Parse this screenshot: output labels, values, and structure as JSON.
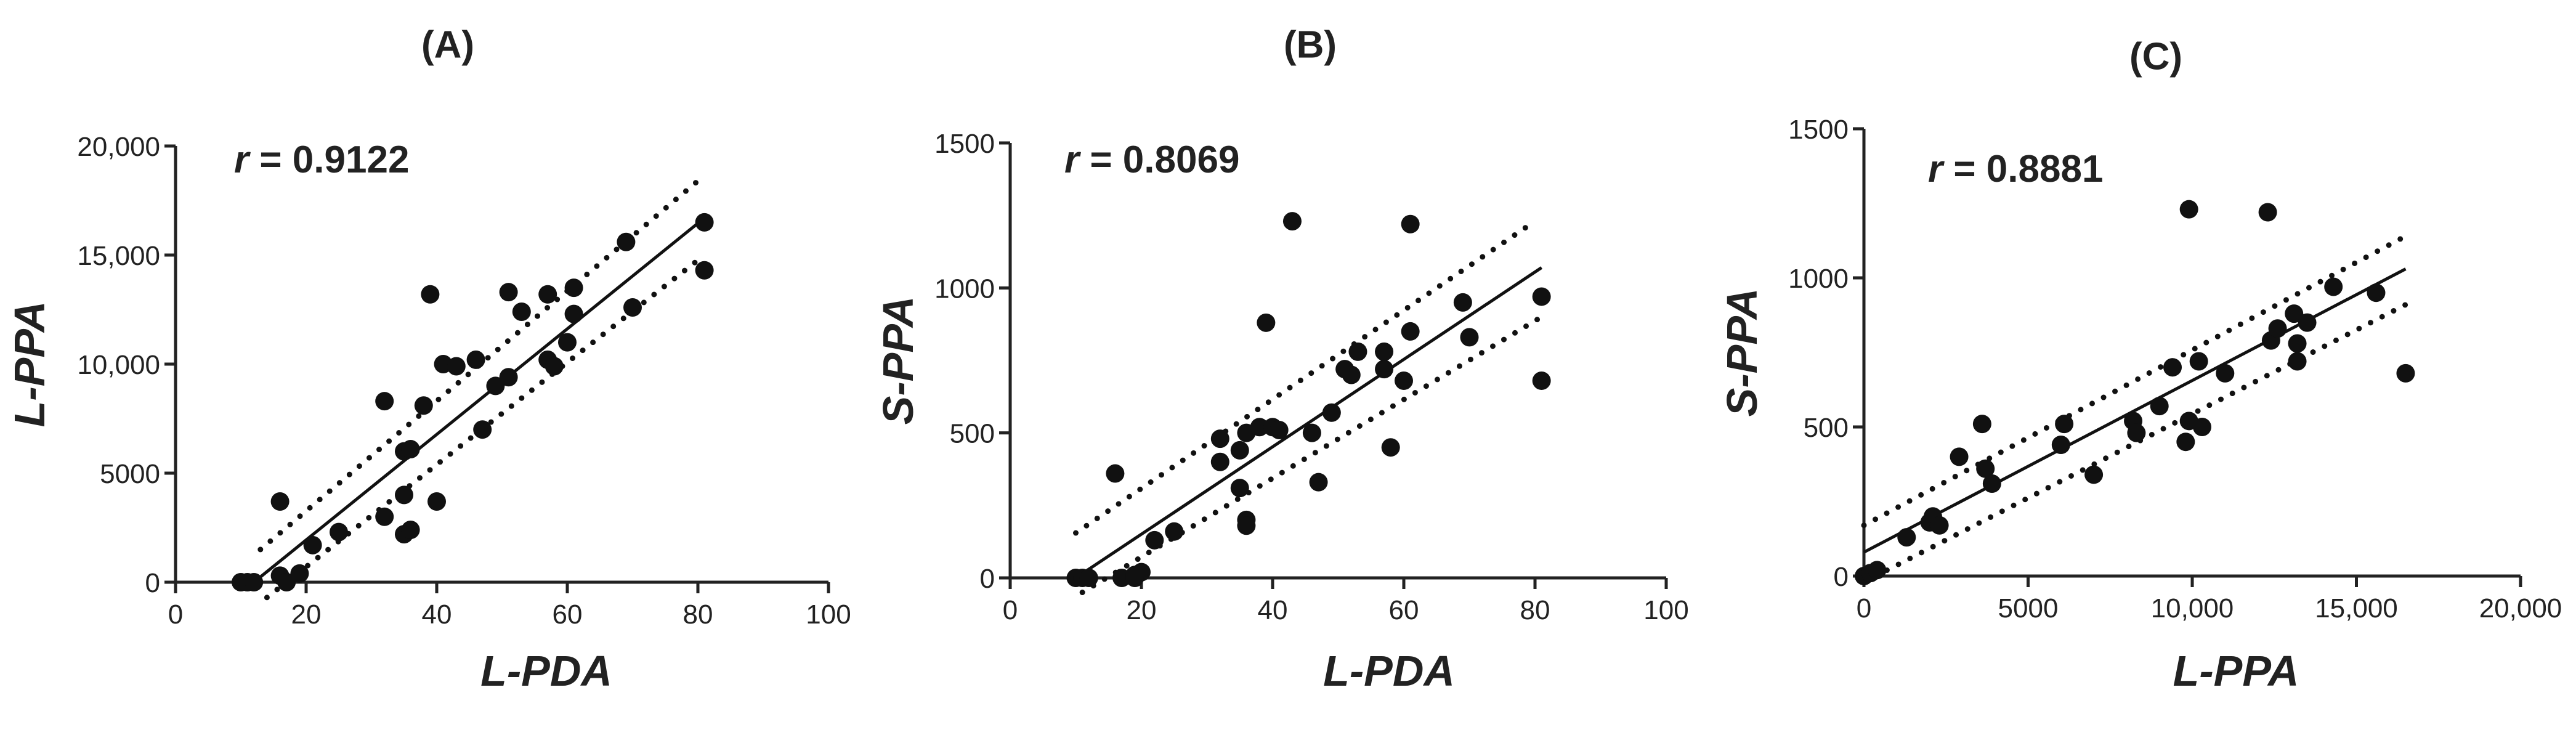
{
  "chart_data": [
    {
      "type": "scatter",
      "panel": "(A)",
      "r_symbol": "r",
      "r_text": " = 0.9122",
      "xlabel": "L-PDA",
      "ylabel": "L-PPA",
      "xlim": [
        0,
        100
      ],
      "ylim": [
        0,
        20000
      ],
      "xticks": [
        0,
        20,
        40,
        60,
        80,
        100
      ],
      "xtick_labels": [
        "0",
        "20",
        "40",
        "60",
        "80",
        "100"
      ],
      "yticks": [
        0,
        5000,
        10000,
        15000,
        20000
      ],
      "ytick_labels": [
        "0",
        "5000",
        "10,000",
        "15,000",
        "20,000"
      ],
      "regression": {
        "x": [
          12,
          81
        ],
        "y": [
          0,
          16700
        ]
      },
      "ci_upper": {
        "x": [
          13,
          80
        ],
        "y": [
          1500,
          18400
        ]
      },
      "ci_lower": {
        "x": [
          14,
          81
        ],
        "y": [
          -700,
          15000
        ]
      },
      "points": [
        {
          "x": 10,
          "y": 0
        },
        {
          "x": 11,
          "y": 0
        },
        {
          "x": 12,
          "y": 0
        },
        {
          "x": 16,
          "y": 3700
        },
        {
          "x": 16,
          "y": 300
        },
        {
          "x": 17,
          "y": 0
        },
        {
          "x": 19,
          "y": 400
        },
        {
          "x": 21,
          "y": 1700
        },
        {
          "x": 25,
          "y": 2300
        },
        {
          "x": 32,
          "y": 8300
        },
        {
          "x": 32,
          "y": 3000
        },
        {
          "x": 35,
          "y": 6000
        },
        {
          "x": 35,
          "y": 4000
        },
        {
          "x": 35,
          "y": 2200
        },
        {
          "x": 36,
          "y": 2400
        },
        {
          "x": 36,
          "y": 6100
        },
        {
          "x": 38,
          "y": 8100
        },
        {
          "x": 39,
          "y": 13200
        },
        {
          "x": 40,
          "y": 3700
        },
        {
          "x": 41,
          "y": 10000
        },
        {
          "x": 43,
          "y": 9900
        },
        {
          "x": 46,
          "y": 10200
        },
        {
          "x": 47,
          "y": 7000
        },
        {
          "x": 49,
          "y": 9000
        },
        {
          "x": 51,
          "y": 13300
        },
        {
          "x": 51,
          "y": 9400
        },
        {
          "x": 53,
          "y": 12400
        },
        {
          "x": 57,
          "y": 10200
        },
        {
          "x": 57,
          "y": 13200
        },
        {
          "x": 58,
          "y": 9900
        },
        {
          "x": 60,
          "y": 11000
        },
        {
          "x": 61,
          "y": 12300
        },
        {
          "x": 61,
          "y": 13500
        },
        {
          "x": 69,
          "y": 15600
        },
        {
          "x": 70,
          "y": 12600
        },
        {
          "x": 81,
          "y": 16500
        },
        {
          "x": 81,
          "y": 14300
        }
      ]
    },
    {
      "type": "scatter",
      "panel": "(B)",
      "r_symbol": "r",
      "r_text": " = 0.8069",
      "xlabel": "L-PDA",
      "ylabel": "S-PPA",
      "xlim": [
        0,
        100
      ],
      "ylim": [
        0,
        1500
      ],
      "xticks": [
        0,
        20,
        40,
        60,
        80,
        100
      ],
      "xtick_labels": [
        "0",
        "20",
        "40",
        "60",
        "80",
        "100"
      ],
      "yticks": [
        0,
        500,
        1000,
        1500
      ],
      "ytick_labels": [
        "0",
        "500",
        "1000",
        "1500"
      ],
      "regression": {
        "x": [
          10,
          81
        ],
        "y": [
          0,
          1070
        ]
      },
      "ci_upper": {
        "x": [
          10,
          80
        ],
        "y": [
          155,
          1230
        ]
      },
      "ci_lower": {
        "x": [
          11,
          81
        ],
        "y": [
          -50,
          900
        ]
      },
      "points": [
        {
          "x": 10,
          "y": 0
        },
        {
          "x": 11,
          "y": 0
        },
        {
          "x": 12,
          "y": 0
        },
        {
          "x": 16,
          "y": 360
        },
        {
          "x": 17,
          "y": 0
        },
        {
          "x": 19,
          "y": 0
        },
        {
          "x": 20,
          "y": 20
        },
        {
          "x": 19,
          "y": 10
        },
        {
          "x": 22,
          "y": 130
        },
        {
          "x": 25,
          "y": 160
        },
        {
          "x": 32,
          "y": 480
        },
        {
          "x": 32,
          "y": 400
        },
        {
          "x": 35,
          "y": 440
        },
        {
          "x": 35,
          "y": 310
        },
        {
          "x": 36,
          "y": 200
        },
        {
          "x": 36,
          "y": 180
        },
        {
          "x": 36,
          "y": 500
        },
        {
          "x": 38,
          "y": 520
        },
        {
          "x": 39,
          "y": 880
        },
        {
          "x": 40,
          "y": 520
        },
        {
          "x": 41,
          "y": 510
        },
        {
          "x": 43,
          "y": 1230
        },
        {
          "x": 46,
          "y": 500
        },
        {
          "x": 47,
          "y": 330
        },
        {
          "x": 49,
          "y": 570
        },
        {
          "x": 51,
          "y": 720
        },
        {
          "x": 52,
          "y": 700
        },
        {
          "x": 53,
          "y": 780
        },
        {
          "x": 57,
          "y": 720
        },
        {
          "x": 57,
          "y": 780
        },
        {
          "x": 58,
          "y": 450
        },
        {
          "x": 60,
          "y": 680
        },
        {
          "x": 61,
          "y": 850
        },
        {
          "x": 61,
          "y": 1220
        },
        {
          "x": 69,
          "y": 950
        },
        {
          "x": 70,
          "y": 830
        },
        {
          "x": 81,
          "y": 970
        },
        {
          "x": 81,
          "y": 680
        }
      ]
    },
    {
      "type": "scatter",
      "panel": "(C)",
      "r_symbol": "r",
      "r_text": " = 0.8881",
      "xlabel": "L-PPA",
      "ylabel": "S-PPA",
      "xlim": [
        0,
        20000
      ],
      "ylim": [
        0,
        1500
      ],
      "xticks": [
        0,
        5000,
        10000,
        15000,
        20000
      ],
      "xtick_labels": [
        "0",
        "5000",
        "10,000",
        "15,000",
        "20,000"
      ],
      "yticks": [
        0,
        500,
        1000,
        1500
      ],
      "ytick_labels": [
        "0",
        "500",
        "1000",
        "1500"
      ],
      "regression": {
        "x": [
          0,
          16500
        ],
        "y": [
          80,
          1030
        ]
      },
      "ci_upper": {
        "x": [
          0,
          16500
        ],
        "y": [
          170,
          1140
        ]
      },
      "ci_lower": {
        "x": [
          0,
          16500
        ],
        "y": [
          -20,
          910
        ]
      },
      "points": [
        {
          "x": 0,
          "y": 0
        },
        {
          "x": 200,
          "y": 10
        },
        {
          "x": 400,
          "y": 20
        },
        {
          "x": 1300,
          "y": 130
        },
        {
          "x": 2000,
          "y": 180
        },
        {
          "x": 2100,
          "y": 200
        },
        {
          "x": 2300,
          "y": 170
        },
        {
          "x": 2900,
          "y": 400
        },
        {
          "x": 3600,
          "y": 510
        },
        {
          "x": 3700,
          "y": 360
        },
        {
          "x": 3900,
          "y": 310
        },
        {
          "x": 6000,
          "y": 440
        },
        {
          "x": 6100,
          "y": 510
        },
        {
          "x": 7000,
          "y": 340
        },
        {
          "x": 8200,
          "y": 520
        },
        {
          "x": 8300,
          "y": 480
        },
        {
          "x": 9000,
          "y": 570
        },
        {
          "x": 9400,
          "y": 700
        },
        {
          "x": 9800,
          "y": 450
        },
        {
          "x": 9900,
          "y": 520
        },
        {
          "x": 9900,
          "y": 1230
        },
        {
          "x": 10200,
          "y": 720
        },
        {
          "x": 10300,
          "y": 500
        },
        {
          "x": 11000,
          "y": 680
        },
        {
          "x": 12300,
          "y": 1220
        },
        {
          "x": 12400,
          "y": 790
        },
        {
          "x": 12600,
          "y": 830
        },
        {
          "x": 13100,
          "y": 880
        },
        {
          "x": 13200,
          "y": 780
        },
        {
          "x": 13200,
          "y": 720
        },
        {
          "x": 13500,
          "y": 850
        },
        {
          "x": 14300,
          "y": 970
        },
        {
          "x": 15600,
          "y": 950
        },
        {
          "x": 16500,
          "y": 680
        }
      ]
    }
  ]
}
